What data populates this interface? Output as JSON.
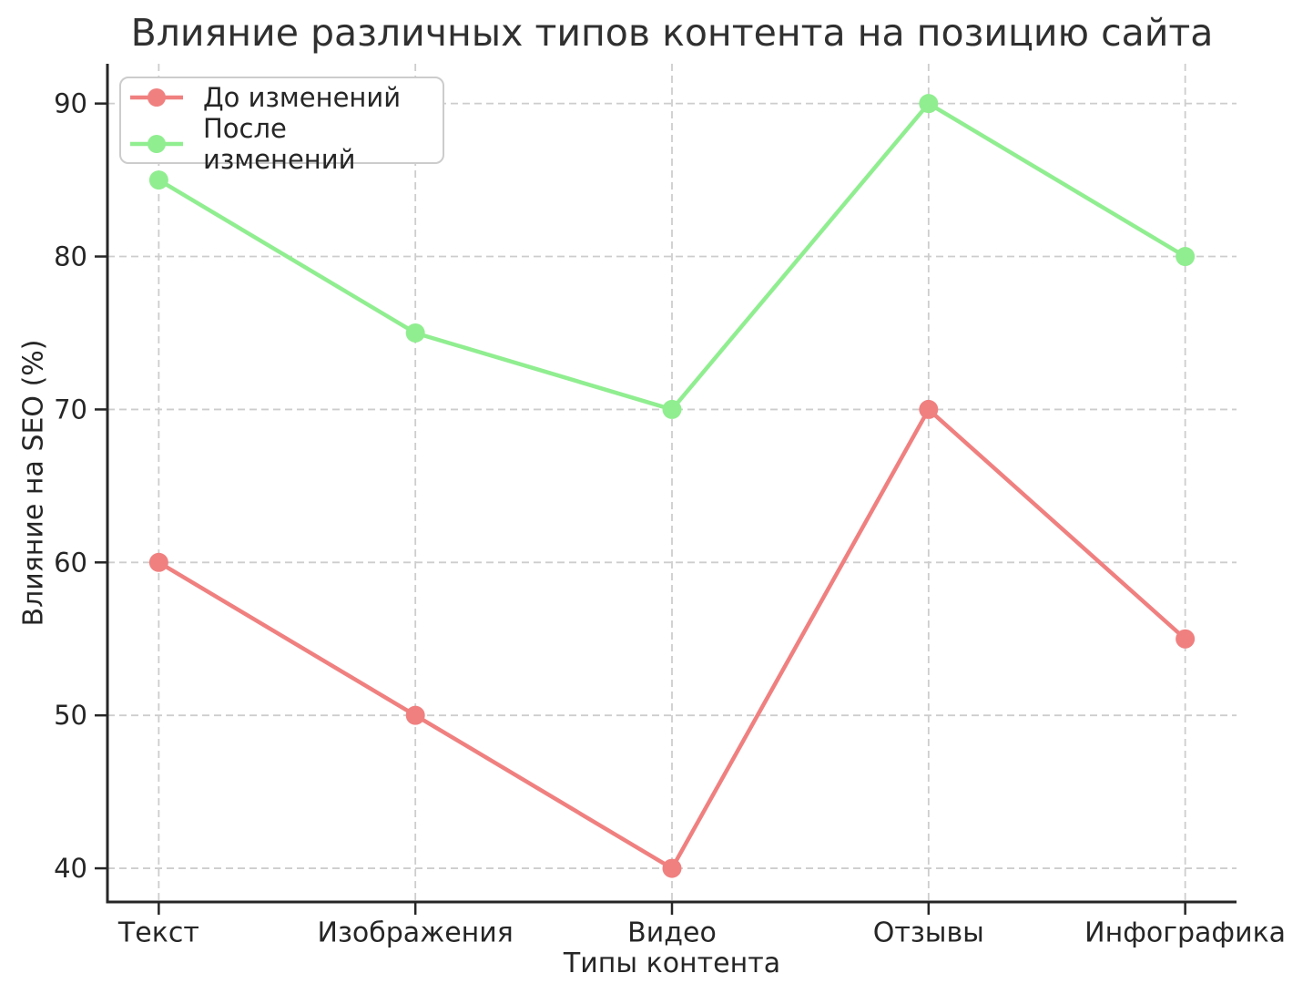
{
  "chart_data": {
    "type": "line",
    "title": "Влияние различных типов контента на позицию сайта",
    "xlabel": "Типы контента",
    "ylabel": "Влияние на SEO (%)",
    "categories": [
      "Текст",
      "Изображения",
      "Видео",
      "Отзывы",
      "Инфографика"
    ],
    "series": [
      {
        "name": "До изменений",
        "color": "#f08080",
        "values": [
          60,
          50,
          40,
          70,
          55
        ]
      },
      {
        "name": "После изменений",
        "color": "#90ee90",
        "values": [
          85,
          75,
          70,
          90,
          80
        ]
      }
    ],
    "yticks": [
      40,
      50,
      60,
      70,
      80,
      90
    ],
    "ylim": [
      37.8,
      92.6
    ],
    "grid": true,
    "grid_style": "dashed",
    "legend": {
      "position": "upper-left",
      "entries": [
        "До изменений",
        "После изменений"
      ]
    },
    "colors": {
      "grid": "#cdcdcd",
      "axis": "#262626",
      "text": "#262626",
      "title": "#303030"
    }
  }
}
